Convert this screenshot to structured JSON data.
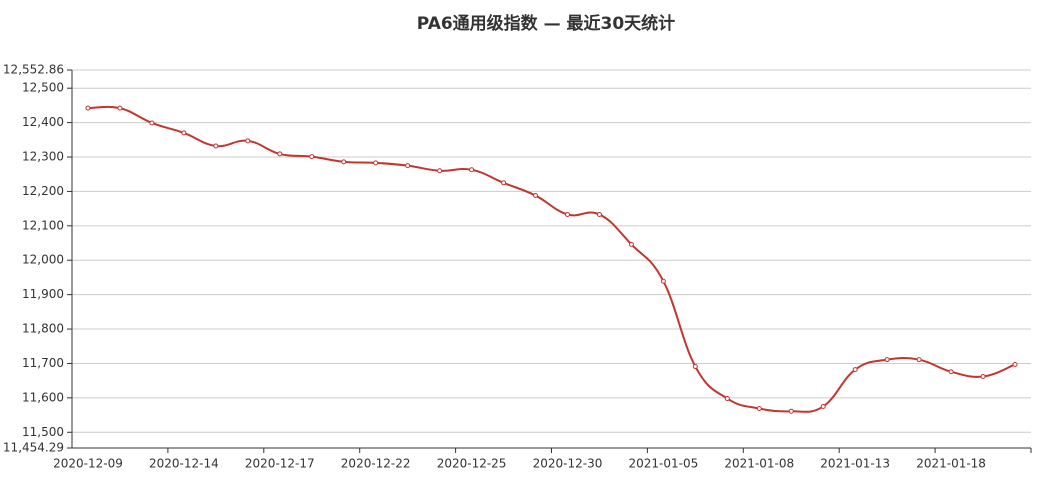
{
  "chart_data": {
    "type": "line",
    "title": "PA6通用级指数 — 最近30天统计",
    "categories": [
      "2020-12-09",
      null,
      null,
      "2020-12-14",
      null,
      null,
      "2020-12-17",
      null,
      null,
      "2020-12-22",
      null,
      null,
      "2020-12-25",
      null,
      null,
      "2020-12-30",
      null,
      null,
      "2021-01-05",
      null,
      null,
      "2021-01-08",
      null,
      null,
      "2021-01-13",
      null,
      null,
      "2021-01-18",
      null,
      null
    ],
    "series": [
      {
        "color": "#c23531",
        "values": [
          12442,
          12442,
          12399,
          12370,
          12332,
          12347,
          12309,
          12301,
          12286,
          12283,
          12275,
          12260,
          12263,
          12225,
          12188,
          12133,
          12133,
          12046,
          11939,
          11691,
          11598,
          11569,
          11561,
          11575,
          11682,
          11711,
          11711,
          11676,
          11662,
          11697
        ]
      }
    ],
    "ylim": [
      11454.29,
      12552.86
    ],
    "yticks": [
      {
        "value": 11454.29,
        "label": "11,454.29"
      },
      {
        "value": 11500,
        "label": "11,500"
      },
      {
        "value": 11600,
        "label": "11,600"
      },
      {
        "value": 11700,
        "label": "11,700"
      },
      {
        "value": 11800,
        "label": "11,800"
      },
      {
        "value": 11900,
        "label": "11,900"
      },
      {
        "value": 12000,
        "label": "12,000"
      },
      {
        "value": 12100,
        "label": "12,100"
      },
      {
        "value": 12200,
        "label": "12,200"
      },
      {
        "value": 12300,
        "label": "12,300"
      },
      {
        "value": 12400,
        "label": "12,400"
      },
      {
        "value": 12500,
        "label": "12,500"
      },
      {
        "value": 12552.86,
        "label": "12,552.86"
      }
    ],
    "grid": true
  }
}
